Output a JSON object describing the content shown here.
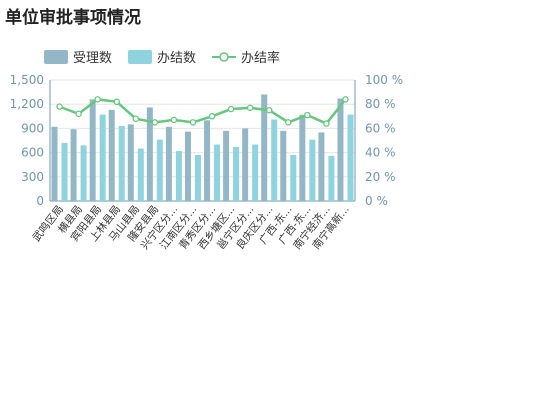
{
  "page_title": "单位审批事项情况",
  "colors": {
    "received_bar": "#93b7c6",
    "completed_bar": "#8ed3de",
    "rate_line": "#67c77e",
    "axis": "#6e98ad",
    "grid": "#e6e6e6",
    "title": "#222222"
  },
  "chart_data": {
    "type": "bar",
    "title": "单位审批事项情况",
    "legend_position": "top-left",
    "grid": true,
    "categories": [
      "武鸣区局",
      "横县局",
      "宾阳县局",
      "上林县局",
      "马山县局",
      "隆安县局",
      "兴宁区分...",
      "江南区分...",
      "青秀区分...",
      "西乡塘区...",
      "邕宁区分...",
      "良庆区分...",
      "广西-东...",
      "广西-东...",
      "南宁经济...",
      "南宁高新..."
    ],
    "y_left": {
      "ticks": [
        "0",
        "300",
        "600",
        "900",
        "1,200",
        "1,500"
      ],
      "ylim": [
        0,
        1500
      ]
    },
    "y_right": {
      "ticks": [
        "0 %",
        "20 %",
        "40 %",
        "60 %",
        "80 %",
        "100 %"
      ],
      "ylim": [
        0,
        100
      ]
    },
    "series": [
      {
        "name": "受理数",
        "type": "bar",
        "axis": "left",
        "values": [
          920,
          890,
          1260,
          1130,
          950,
          1160,
          920,
          860,
          1000,
          870,
          900,
          1320,
          870,
          1070,
          850,
          1270
        ]
      },
      {
        "name": "办结数",
        "type": "bar",
        "axis": "left",
        "values": [
          720,
          690,
          1070,
          930,
          650,
          760,
          620,
          570,
          700,
          670,
          700,
          1010,
          570,
          760,
          560,
          1070
        ]
      },
      {
        "name": "办结率",
        "type": "line",
        "axis": "right",
        "values": [
          78,
          72,
          84,
          82,
          68,
          65,
          67,
          65,
          70,
          76,
          77,
          75,
          65,
          71,
          64,
          84
        ]
      }
    ]
  }
}
